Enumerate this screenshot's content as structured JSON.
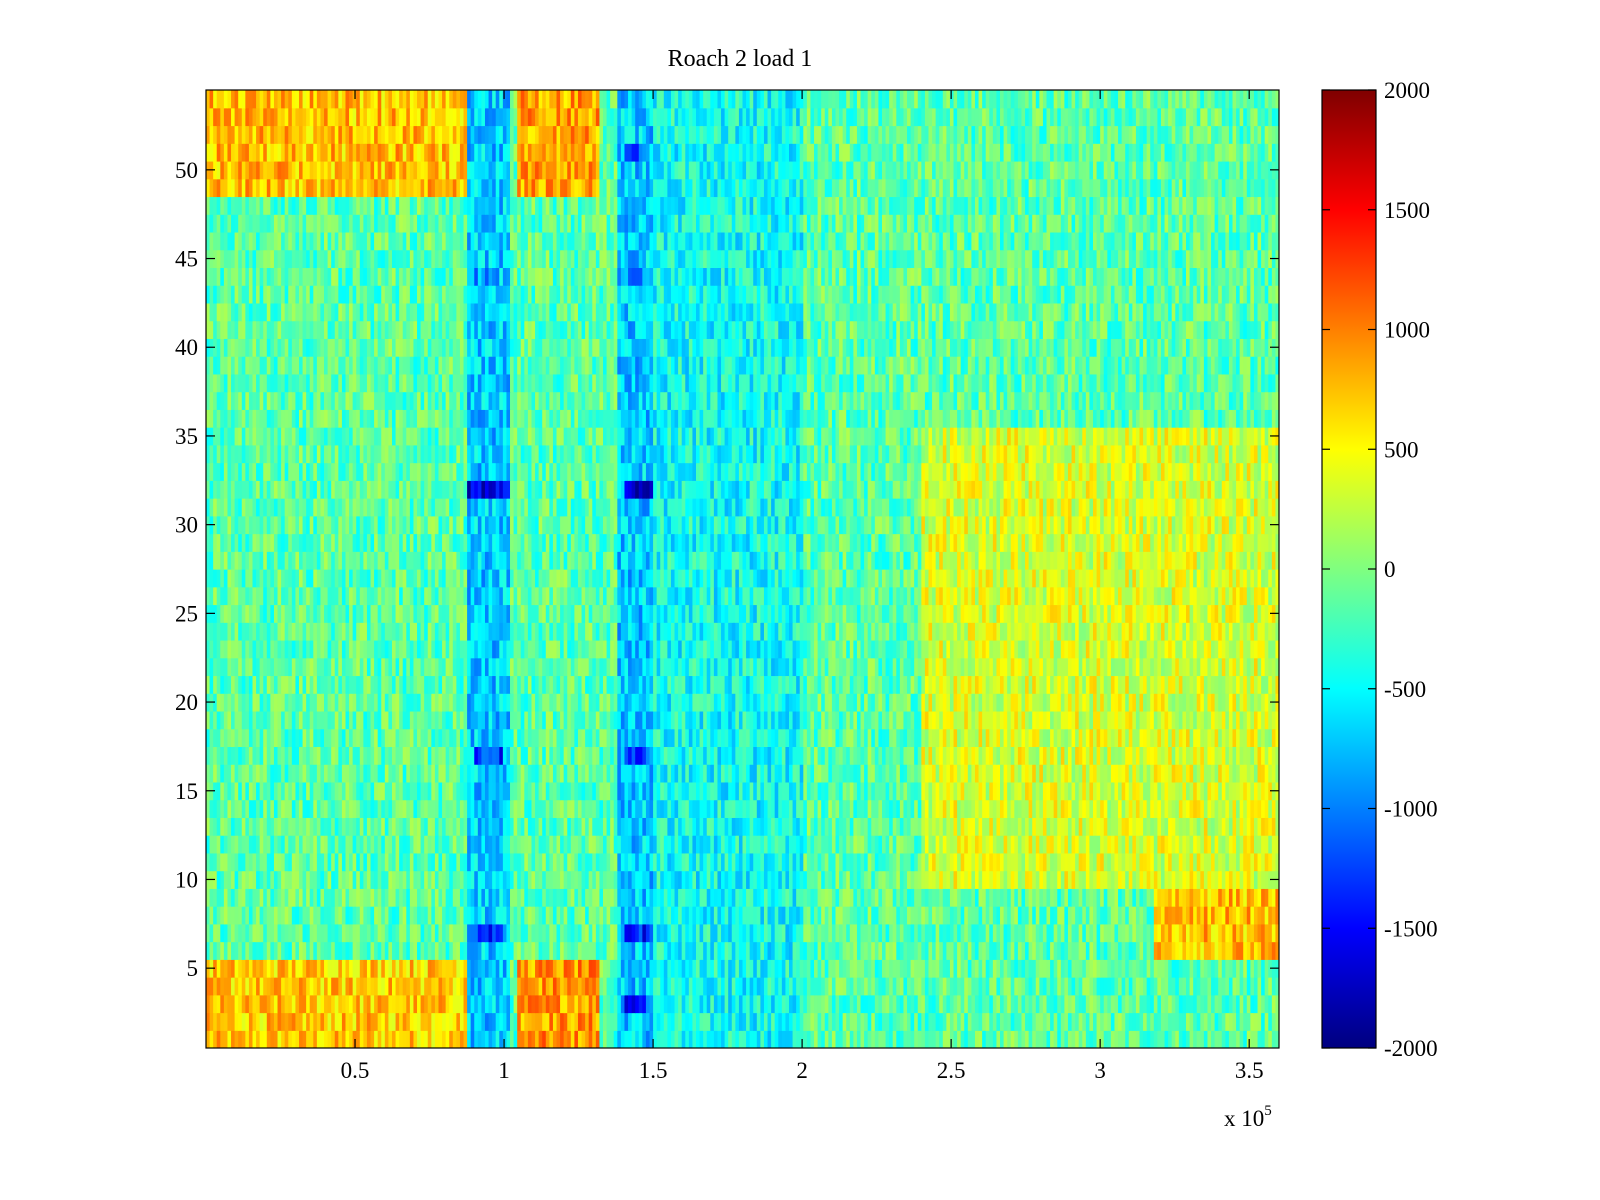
{
  "chart_data": {
    "type": "heatmap",
    "title": "Roach 2 load 1",
    "xlabel": "",
    "ylabel": "",
    "x_range": [
      0,
      360000
    ],
    "y_range": [
      0.5,
      54.5
    ],
    "x_ticks": [
      50000,
      100000,
      150000,
      200000,
      250000,
      300000,
      350000
    ],
    "x_tick_labels": [
      "0.5",
      "1",
      "1.5",
      "2",
      "2.5",
      "3",
      "3.5"
    ],
    "x_multiplier_label": "x 10",
    "x_multiplier_exponent": "5",
    "y_ticks": [
      5,
      10,
      15,
      20,
      25,
      30,
      35,
      40,
      45,
      50
    ],
    "y_tick_labels": [
      "5",
      "10",
      "15",
      "20",
      "25",
      "30",
      "35",
      "40",
      "45",
      "50"
    ],
    "colorbar": {
      "colormap": "jet",
      "range": [
        -2000,
        2000
      ],
      "ticks": [
        2000,
        1500,
        1000,
        500,
        0,
        -500,
        -1000,
        -1500,
        -2000
      ],
      "tick_labels": [
        "2000",
        "1500",
        "1000",
        "500",
        "0",
        "-500",
        "-1000",
        "-1500",
        "-2000"
      ]
    },
    "rows": 54,
    "baseline_value": -150,
    "features": [
      {
        "kind": "warm_band",
        "rows": [
          1,
          5
        ],
        "x": [
          0,
          88000
        ],
        "value": 700
      },
      {
        "kind": "warm_band",
        "rows": [
          1,
          5
        ],
        "x": [
          105000,
          132000
        ],
        "value": 900
      },
      {
        "kind": "warm_band",
        "rows": [
          49,
          54
        ],
        "x": [
          0,
          88000
        ],
        "value": 750
      },
      {
        "kind": "warm_band",
        "rows": [
          49,
          54
        ],
        "x": [
          105000,
          132000
        ],
        "value": 850
      },
      {
        "kind": "warm_band",
        "rows": [
          6,
          9
        ],
        "x": [
          318000,
          360000
        ],
        "value": 750
      },
      {
        "kind": "warm_region",
        "rows": [
          10,
          35
        ],
        "x": [
          240000,
          360000
        ],
        "value": 350
      },
      {
        "kind": "cool_column",
        "rows": [
          1,
          54
        ],
        "x": [
          88000,
          102000
        ],
        "value": -700
      },
      {
        "kind": "cool_column",
        "rows": [
          1,
          54
        ],
        "x": [
          138000,
          150000
        ],
        "value": -700
      },
      {
        "kind": "cool_region",
        "rows": [
          1,
          54
        ],
        "x": [
          150000,
          200000
        ],
        "value": -450
      },
      {
        "kind": "spot",
        "rows": [
          32,
          32
        ],
        "x": [
          88000,
          102000
        ],
        "value": -1600
      },
      {
        "kind": "spot",
        "rows": [
          32,
          32
        ],
        "x": [
          140000,
          150000
        ],
        "value": -1600
      },
      {
        "kind": "spot",
        "rows": [
          17,
          17
        ],
        "x": [
          90000,
          100000
        ],
        "value": -1300
      },
      {
        "kind": "spot",
        "rows": [
          17,
          17
        ],
        "x": [
          140000,
          148000
        ],
        "value": -1300
      },
      {
        "kind": "spot",
        "rows": [
          7,
          7
        ],
        "x": [
          90000,
          100000
        ],
        "value": -1300
      },
      {
        "kind": "spot",
        "rows": [
          7,
          7
        ],
        "x": [
          140000,
          150000
        ],
        "value": -1400
      },
      {
        "kind": "spot",
        "rows": [
          3,
          3
        ],
        "x": [
          140000,
          148000
        ],
        "value": -1500
      },
      {
        "kind": "spot",
        "rows": [
          51,
          51
        ],
        "x": [
          140000,
          148000
        ],
        "value": -1100
      },
      {
        "kind": "spot",
        "rows": [
          44,
          44
        ],
        "x": [
          88000,
          98000
        ],
        "value": -900
      },
      {
        "kind": "spot",
        "rows": [
          44,
          44
        ],
        "x": [
          140000,
          148000
        ],
        "value": -1000
      }
    ]
  }
}
